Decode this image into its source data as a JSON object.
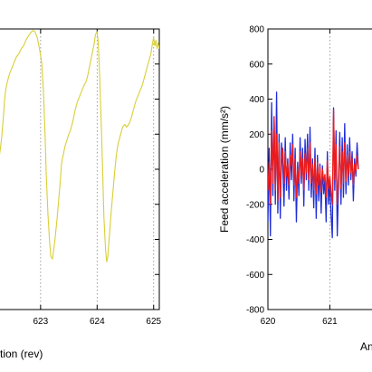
{
  "chart_data": [
    {
      "type": "line",
      "xlabel": "tion (rev)",
      "ylabel": "",
      "xlim": [
        622.25,
        625.1
      ],
      "ylim": [
        0,
        1
      ],
      "x_ticks": [
        623,
        624,
        625
      ],
      "x_tick_labels": [
        "623",
        "624",
        "625"
      ],
      "grid": "dotted vertical lines at x = 623 and 624",
      "legend": "none",
      "series": [
        {
          "color": "#d8cf38",
          "points": [
            [
              622.25,
              0.52
            ],
            [
              622.28,
              0.56
            ],
            [
              622.31,
              0.61
            ],
            [
              622.34,
              0.68
            ],
            [
              622.36,
              0.74
            ],
            [
              622.38,
              0.78
            ],
            [
              622.41,
              0.81
            ],
            [
              622.45,
              0.84
            ],
            [
              622.49,
              0.86
            ],
            [
              622.53,
              0.88
            ],
            [
              622.57,
              0.9
            ],
            [
              622.61,
              0.91
            ],
            [
              622.66,
              0.93
            ],
            [
              622.7,
              0.94
            ],
            [
              622.74,
              0.96
            ],
            [
              622.77,
              0.97
            ],
            [
              622.8,
              0.98
            ],
            [
              622.84,
              0.99
            ],
            [
              622.87,
              0.995
            ],
            [
              622.9,
              0.99
            ],
            [
              622.94,
              0.97
            ],
            [
              622.98,
              0.93
            ],
            [
              623.02,
              0.88
            ],
            [
              623.05,
              0.78
            ],
            [
              623.08,
              0.62
            ],
            [
              623.1,
              0.48
            ],
            [
              623.13,
              0.34
            ],
            [
              623.16,
              0.24
            ],
            [
              623.18,
              0.19
            ],
            [
              623.21,
              0.18
            ],
            [
              623.25,
              0.24
            ],
            [
              623.29,
              0.32
            ],
            [
              623.32,
              0.39
            ],
            [
              623.35,
              0.46
            ],
            [
              623.37,
              0.52
            ],
            [
              623.4,
              0.55
            ],
            [
              623.43,
              0.58
            ],
            [
              623.46,
              0.6
            ],
            [
              623.49,
              0.62
            ],
            [
              623.53,
              0.64
            ],
            [
              623.57,
              0.67
            ],
            [
              623.61,
              0.71
            ],
            [
              623.65,
              0.74
            ],
            [
              623.69,
              0.76
            ],
            [
              623.73,
              0.78
            ],
            [
              623.77,
              0.8
            ],
            [
              623.8,
              0.81
            ],
            [
              623.83,
              0.83
            ],
            [
              623.86,
              0.86
            ],
            [
              623.89,
              0.89
            ],
            [
              623.92,
              0.92
            ],
            [
              623.95,
              0.95
            ],
            [
              623.97,
              0.98
            ],
            [
              624.0,
              0.99
            ],
            [
              624.02,
              0.95
            ],
            [
              624.04,
              0.86
            ],
            [
              624.06,
              0.74
            ],
            [
              624.08,
              0.62
            ],
            [
              624.1,
              0.48
            ],
            [
              624.12,
              0.33
            ],
            [
              624.15,
              0.21
            ],
            [
              624.17,
              0.17
            ],
            [
              624.19,
              0.19
            ],
            [
              624.22,
              0.27
            ],
            [
              624.25,
              0.35
            ],
            [
              624.28,
              0.42
            ],
            [
              624.31,
              0.49
            ],
            [
              624.34,
              0.55
            ],
            [
              624.37,
              0.59
            ],
            [
              624.41,
              0.62
            ],
            [
              624.45,
              0.65
            ],
            [
              624.49,
              0.66
            ],
            [
              624.52,
              0.65
            ],
            [
              624.56,
              0.66
            ],
            [
              624.6,
              0.68
            ],
            [
              624.64,
              0.71
            ],
            [
              624.68,
              0.74
            ],
            [
              624.72,
              0.76
            ],
            [
              624.76,
              0.78
            ],
            [
              624.8,
              0.8
            ],
            [
              624.84,
              0.83
            ],
            [
              624.88,
              0.86
            ],
            [
              624.92,
              0.89
            ],
            [
              624.95,
              0.91
            ],
            [
              624.98,
              0.95
            ],
            [
              625.0,
              0.97
            ],
            [
              625.02,
              0.94
            ],
            [
              625.04,
              0.96
            ],
            [
              625.06,
              0.93
            ],
            [
              625.08,
              0.95
            ],
            [
              625.1,
              0.93
            ]
          ]
        }
      ]
    },
    {
      "type": "line",
      "xlabel": "An",
      "ylabel": "Feed acceleration (mm/s²)",
      "xlim": [
        620,
        621.9
      ],
      "ylim": [
        -800,
        800
      ],
      "x_ticks": [
        620,
        621
      ],
      "x_tick_labels": [
        "620",
        "621"
      ],
      "y_ticks": [
        -800,
        -600,
        -400,
        -200,
        0,
        200,
        400,
        600,
        800
      ],
      "y_tick_labels": [
        "-800",
        "-600",
        "-400",
        "-200",
        "0",
        "200",
        "400",
        "600",
        "800"
      ],
      "grid": "dotted vertical line at x = 621",
      "legend": "none",
      "series": [
        {
          "color": "#1f2dd8",
          "points": [
            [
              620.0,
              -300
            ],
            [
              620.02,
              120
            ],
            [
              620.04,
              -380
            ],
            [
              620.06,
              380
            ],
            [
              620.08,
              -150
            ],
            [
              620.1,
              300
            ],
            [
              620.12,
              -200
            ],
            [
              620.14,
              440
            ],
            [
              620.16,
              -250
            ],
            [
              620.18,
              200
            ],
            [
              620.2,
              -280
            ],
            [
              620.22,
              150
            ],
            [
              620.24,
              20
            ],
            [
              620.26,
              -210
            ],
            [
              620.28,
              180
            ],
            [
              620.3,
              -120
            ],
            [
              620.32,
              60
            ],
            [
              620.34,
              -170
            ],
            [
              620.36,
              150
            ],
            [
              620.38,
              -60
            ],
            [
              620.4,
              200
            ],
            [
              620.42,
              -180
            ],
            [
              620.44,
              120
            ],
            [
              620.46,
              -300
            ],
            [
              620.48,
              40
            ],
            [
              620.5,
              -150
            ],
            [
              620.52,
              180
            ],
            [
              620.54,
              -80
            ],
            [
              620.56,
              120
            ],
            [
              620.58,
              -210
            ],
            [
              620.6,
              170
            ],
            [
              620.62,
              -60
            ],
            [
              620.64,
              200
            ],
            [
              620.66,
              -120
            ],
            [
              620.68,
              240
            ],
            [
              620.7,
              -160
            ],
            [
              620.72,
              60
            ],
            [
              620.74,
              -220
            ],
            [
              620.76,
              120
            ],
            [
              620.78,
              -280
            ],
            [
              620.8,
              80
            ],
            [
              620.82,
              -180
            ],
            [
              620.84,
              30
            ],
            [
              620.86,
              -250
            ],
            [
              620.88,
              20
            ],
            [
              620.9,
              -140
            ],
            [
              620.92,
              -60
            ],
            [
              620.94,
              -300
            ],
            [
              620.96,
              100
            ],
            [
              620.98,
              -200
            ],
            [
              621.0,
              -80
            ],
            [
              621.02,
              -260
            ],
            [
              621.04,
              -390
            ],
            [
              621.06,
              350
            ],
            [
              621.08,
              -120
            ],
            [
              621.1,
              220
            ],
            [
              621.12,
              -380
            ],
            [
              621.14,
              -90
            ],
            [
              621.16,
              210
            ],
            [
              621.18,
              -200
            ],
            [
              621.2,
              180
            ],
            [
              621.22,
              -160
            ],
            [
              621.24,
              260
            ],
            [
              621.26,
              -140
            ],
            [
              621.28,
              140
            ],
            [
              621.3,
              -90
            ],
            [
              621.32,
              180
            ],
            [
              621.34,
              -60
            ],
            [
              621.36,
              100
            ],
            [
              621.38,
              -180
            ],
            [
              621.4,
              60
            ],
            [
              621.42,
              -40
            ],
            [
              621.44,
              150
            ],
            [
              621.46,
              0
            ]
          ]
        },
        {
          "color": "#ee1c1c",
          "points": [
            [
              620.0,
              -120
            ],
            [
              620.02,
              40
            ],
            [
              620.04,
              -200
            ],
            [
              620.06,
              220
            ],
            [
              620.08,
              -80
            ],
            [
              620.1,
              300
            ],
            [
              620.12,
              -120
            ],
            [
              620.14,
              200
            ],
            [
              620.16,
              -180
            ],
            [
              620.18,
              150
            ],
            [
              620.2,
              -160
            ],
            [
              620.22,
              60
            ],
            [
              620.24,
              120
            ],
            [
              620.26,
              -80
            ],
            [
              620.28,
              100
            ],
            [
              620.3,
              -40
            ],
            [
              620.32,
              30
            ],
            [
              620.34,
              -90
            ],
            [
              620.36,
              80
            ],
            [
              620.38,
              20
            ],
            [
              620.4,
              140
            ],
            [
              620.42,
              -90
            ],
            [
              620.44,
              60
            ],
            [
              620.46,
              -160
            ],
            [
              620.48,
              0
            ],
            [
              620.5,
              -80
            ],
            [
              620.52,
              100
            ],
            [
              620.54,
              -40
            ],
            [
              620.56,
              60
            ],
            [
              620.58,
              -120
            ],
            [
              620.6,
              90
            ],
            [
              620.62,
              -20
            ],
            [
              620.64,
              120
            ],
            [
              620.66,
              -60
            ],
            [
              620.68,
              150
            ],
            [
              620.7,
              -80
            ],
            [
              620.72,
              30
            ],
            [
              620.74,
              -120
            ],
            [
              620.76,
              60
            ],
            [
              620.78,
              -140
            ],
            [
              620.8,
              40
            ],
            [
              620.82,
              -90
            ],
            [
              620.84,
              10
            ],
            [
              620.86,
              -130
            ],
            [
              620.88,
              0
            ],
            [
              620.9,
              -70
            ],
            [
              620.92,
              -30
            ],
            [
              620.94,
              -160
            ],
            [
              620.96,
              50
            ],
            [
              620.98,
              -110
            ],
            [
              621.0,
              -40
            ],
            [
              621.02,
              -130
            ],
            [
              621.04,
              -200
            ],
            [
              621.06,
              340
            ],
            [
              621.08,
              -60
            ],
            [
              621.1,
              140
            ],
            [
              621.12,
              -200
            ],
            [
              621.14,
              -40
            ],
            [
              621.16,
              130
            ],
            [
              621.18,
              -110
            ],
            [
              621.2,
              100
            ],
            [
              621.22,
              -80
            ],
            [
              621.24,
              150
            ],
            [
              621.26,
              -70
            ],
            [
              621.28,
              80
            ],
            [
              621.3,
              -40
            ],
            [
              621.32,
              100
            ],
            [
              621.34,
              -20
            ],
            [
              621.36,
              60
            ],
            [
              621.38,
              -90
            ],
            [
              621.4,
              30
            ],
            [
              621.42,
              -10
            ],
            [
              621.44,
              80
            ],
            [
              621.46,
              0
            ]
          ]
        }
      ]
    }
  ]
}
